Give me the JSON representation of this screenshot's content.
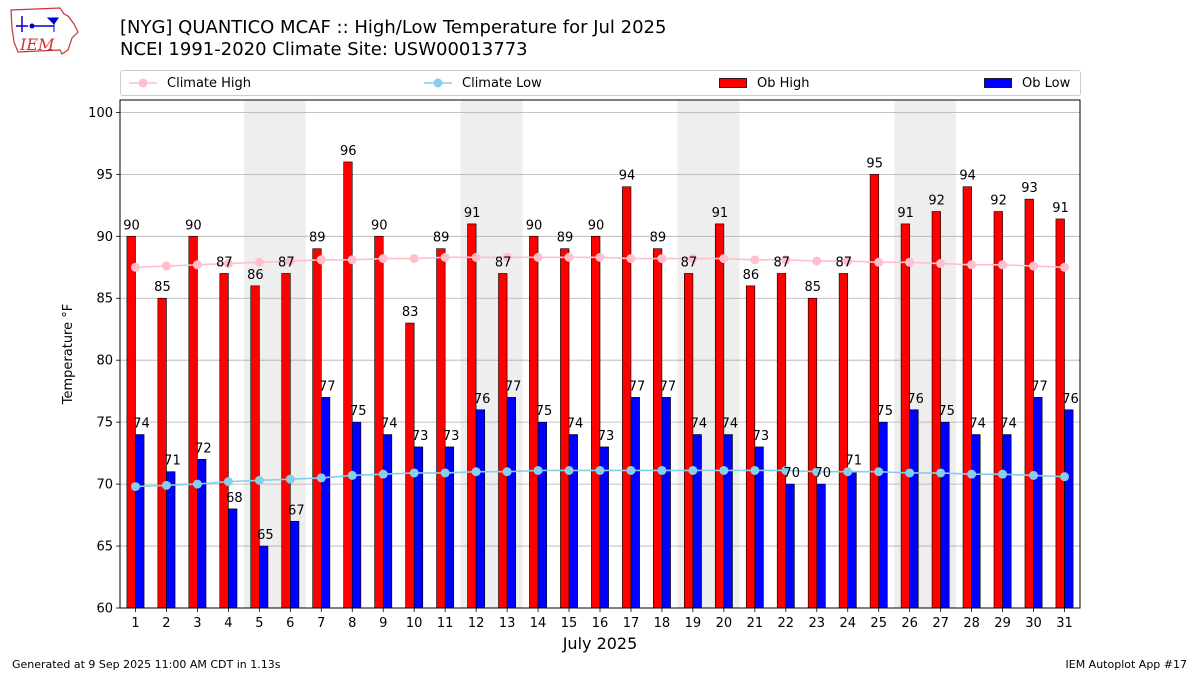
{
  "header": {
    "title_line1": "[NYG] QUANTICO MCAF :: High/Low Temperature for Jul 2025",
    "title_line2": "NCEI 1991-2020 Climate Site: USW00013773",
    "logo_text": "IEM"
  },
  "legend": {
    "climate_high": "Climate High",
    "climate_low": "Climate Low",
    "ob_high": "Ob High",
    "ob_low": "Ob Low"
  },
  "footer": {
    "generated": "Generated at 9 Sep 2025 11:00 AM CDT in 1.13s",
    "app": "IEM Autoplot App #17"
  },
  "colors": {
    "ob_high": "#ff0000",
    "ob_low": "#0000ff",
    "climate_high": "#ffc0cb",
    "climate_low": "#87ceeb",
    "weekend_shade": "#eeeeee",
    "grid": "#b0b0b0"
  },
  "chart_data": {
    "type": "bar",
    "title": "[NYG] QUANTICO MCAF :: High/Low Temperature for Jul 2025",
    "xlabel": "July 2025",
    "ylabel": "Temperature °F",
    "ylim": [
      60,
      101
    ],
    "yticks": [
      60,
      65,
      70,
      75,
      80,
      85,
      90,
      95,
      100
    ],
    "categories": [
      "1",
      "2",
      "3",
      "4",
      "5",
      "6",
      "7",
      "8",
      "9",
      "10",
      "11",
      "12",
      "13",
      "14",
      "15",
      "16",
      "17",
      "18",
      "19",
      "20",
      "21",
      "22",
      "23",
      "24",
      "25",
      "26",
      "27",
      "28",
      "29",
      "30",
      "31"
    ],
    "shaded_days": [
      [
        5,
        6
      ],
      [
        12,
        13
      ],
      [
        19,
        20
      ],
      [
        26,
        27
      ]
    ],
    "series": [
      {
        "name": "Ob High",
        "kind": "bar",
        "values": [
          90,
          85,
          90,
          87,
          86,
          87,
          89,
          96,
          90,
          83,
          89,
          91,
          87,
          90,
          89,
          90,
          94,
          89,
          87,
          91,
          86,
          87,
          85,
          87,
          95,
          91,
          92,
          94,
          92,
          93,
          91.4
        ],
        "labels": [
          "90",
          "85",
          "90",
          "87",
          "86",
          "87",
          "89",
          "96",
          "90",
          "83",
          "89",
          "91",
          "87",
          "90",
          "89",
          "90",
          "94",
          "89",
          "87",
          "91",
          "86",
          "87",
          "85",
          "87",
          "95",
          "91",
          "92",
          "94",
          "92",
          "93",
          "91"
        ]
      },
      {
        "name": "Ob Low",
        "kind": "bar",
        "values": [
          74,
          71,
          72,
          68,
          65,
          67,
          77,
          75,
          74,
          73,
          73,
          76,
          77,
          75,
          74,
          73,
          77,
          77,
          74,
          74,
          73,
          70,
          70,
          71,
          75,
          76,
          75,
          74,
          74,
          77,
          76
        ],
        "labels": [
          "74",
          "71",
          "72",
          "68",
          "65",
          "67",
          "77",
          "75",
          "74",
          "73",
          "73",
          "76",
          "77",
          "75",
          "74",
          "73",
          "77",
          "77",
          "74",
          "74",
          "73",
          "70",
          "70",
          "71",
          "75",
          "76",
          "75",
          "74",
          "74",
          "77",
          "76"
        ]
      },
      {
        "name": "Climate High",
        "kind": "line",
        "values": [
          87.5,
          87.6,
          87.7,
          87.8,
          87.9,
          88.0,
          88.1,
          88.1,
          88.2,
          88.2,
          88.3,
          88.3,
          88.3,
          88.3,
          88.3,
          88.3,
          88.2,
          88.2,
          88.2,
          88.2,
          88.1,
          88.1,
          88.0,
          88.0,
          87.9,
          87.9,
          87.8,
          87.7,
          87.7,
          87.6,
          87.5
        ]
      },
      {
        "name": "Climate Low",
        "kind": "line",
        "values": [
          69.8,
          69.9,
          70.0,
          70.2,
          70.3,
          70.4,
          70.5,
          70.7,
          70.8,
          70.9,
          70.9,
          71.0,
          71.0,
          71.1,
          71.1,
          71.1,
          71.1,
          71.1,
          71.1,
          71.1,
          71.1,
          71.1,
          71.0,
          71.0,
          71.0,
          70.9,
          70.9,
          70.8,
          70.8,
          70.7,
          70.6
        ]
      }
    ]
  }
}
